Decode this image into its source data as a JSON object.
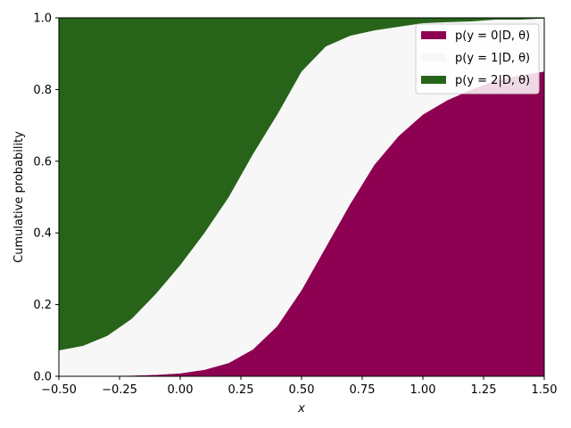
{
  "chart_data": {
    "type": "area",
    "stacked": true,
    "xlabel": "x",
    "ylabel": "Cumulative probability",
    "xlim": [
      -0.5,
      1.5
    ],
    "ylim": [
      0,
      1.0
    ],
    "x_ticks": [
      "−0.50",
      "−0.25",
      "0.00",
      "0.25",
      "0.50",
      "0.75",
      "1.00",
      "1.25",
      "1.50"
    ],
    "y_ticks": [
      "0.0",
      "0.2",
      "0.4",
      "0.6",
      "0.8",
      "1.0"
    ],
    "grid": false,
    "legend_position": "top-right",
    "x": [
      -0.5,
      -0.4,
      -0.3,
      -0.2,
      -0.1,
      0.0,
      0.1,
      0.2,
      0.3,
      0.4,
      0.5,
      0.6,
      0.7,
      0.8,
      0.9,
      1.0,
      1.1,
      1.2,
      1.3,
      1.4,
      1.5
    ],
    "series": [
      {
        "name": "p(y = 0|D, θ)",
        "color": "#8e0152",
        "values": [
          0.0,
          0.0,
          0.001,
          0.002,
          0.004,
          0.008,
          0.018,
          0.037,
          0.075,
          0.14,
          0.24,
          0.36,
          0.48,
          0.59,
          0.67,
          0.73,
          0.77,
          0.8,
          0.825,
          0.84,
          0.85
        ]
      },
      {
        "name": "p(y = 1|D, θ)",
        "color": "#f7f7f7",
        "values": [
          0.072,
          0.085,
          0.112,
          0.158,
          0.226,
          0.302,
          0.382,
          0.463,
          0.545,
          0.59,
          0.61,
          0.56,
          0.47,
          0.375,
          0.305,
          0.255,
          0.218,
          0.19,
          0.17,
          0.155,
          0.148
        ]
      },
      {
        "name": "p(y = 2|D, θ)",
        "color": "#276419",
        "values": [
          0.928,
          0.915,
          0.887,
          0.84,
          0.77,
          0.69,
          0.6,
          0.5,
          0.38,
          0.27,
          0.15,
          0.08,
          0.05,
          0.035,
          0.025,
          0.015,
          0.012,
          0.01,
          0.005,
          0.005,
          0.002
        ]
      }
    ]
  }
}
